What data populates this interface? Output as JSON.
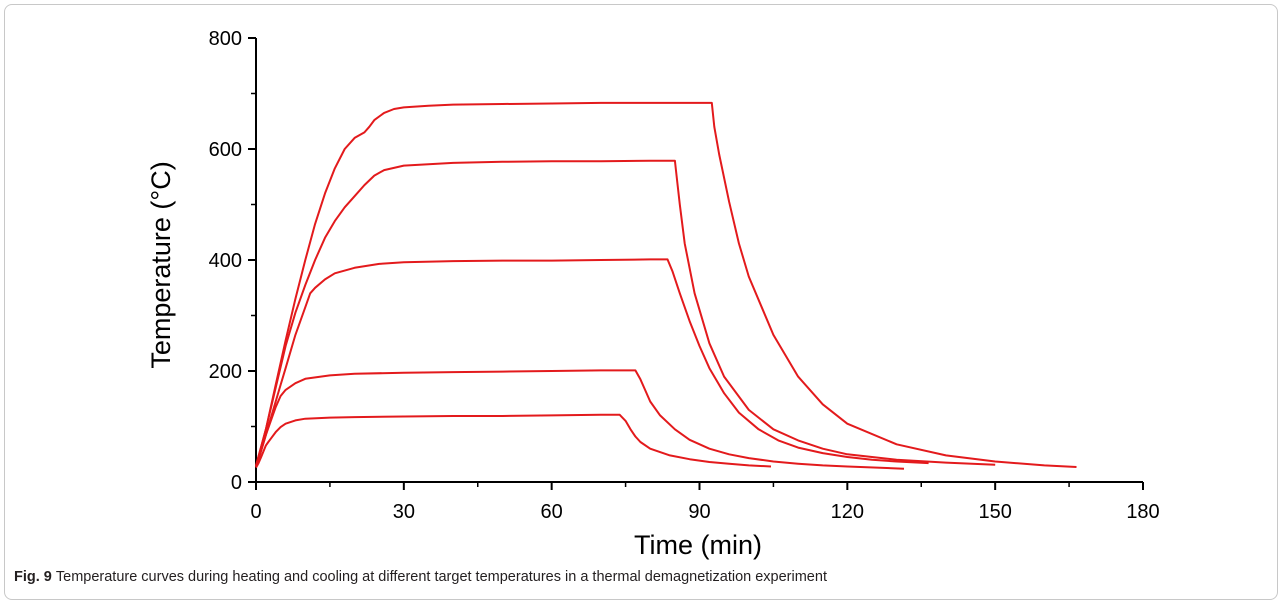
{
  "chart_data": {
    "type": "line",
    "title": "",
    "xlabel": "Time (min)",
    "ylabel": "Temperature (°C)",
    "xlim": [
      0,
      180
    ],
    "ylim": [
      0,
      800
    ],
    "xticks": [
      0,
      30,
      60,
      90,
      120,
      150,
      180
    ],
    "yticks": [
      0,
      200,
      400,
      600,
      800
    ],
    "grid": false,
    "line_color": "#e31a1c",
    "series": [
      {
        "x": [
          0,
          0.5,
          1,
          1.5,
          2,
          2.5,
          3,
          4,
          5,
          6,
          8,
          10,
          15,
          20,
          30,
          40,
          50,
          60,
          70,
          73.8,
          75,
          76,
          77,
          78,
          80,
          84,
          88,
          92,
          96,
          100,
          104.5
        ],
        "y": [
          26,
          34,
          44,
          55,
          66,
          72,
          78,
          90,
          99,
          105,
          111,
          114,
          116,
          117,
          118,
          119,
          119,
          120,
          121,
          121,
          110,
          95,
          82,
          72,
          60,
          48,
          41,
          36,
          33,
          30,
          28
        ]
      },
      {
        "x": [
          0,
          0.5,
          1,
          1.5,
          2,
          3,
          4,
          5,
          6,
          8,
          10,
          15,
          20,
          30,
          40,
          50,
          60,
          70,
          77,
          78,
          79,
          80,
          82,
          85,
          88,
          92,
          96,
          100,
          105,
          110,
          115,
          120,
          126,
          131.5
        ],
        "y": [
          28,
          40,
          55,
          70,
          85,
          110,
          135,
          155,
          166,
          178,
          186,
          192,
          195,
          197,
          198,
          199,
          200,
          201,
          201,
          185,
          165,
          145,
          120,
          95,
          76,
          60,
          50,
          43,
          37,
          33,
          30,
          28,
          26,
          24
        ]
      },
      {
        "x": [
          0,
          1,
          2,
          3,
          4,
          5,
          6,
          8,
          10,
          11,
          12,
          14,
          16,
          20,
          25,
          30,
          40,
          50,
          60,
          70,
          80,
          83.5,
          84.5,
          86,
          88,
          90,
          92,
          95,
          98,
          102,
          106,
          110,
          115,
          120,
          125,
          130,
          136.5
        ],
        "y": [
          28,
          55,
          85,
          115,
          145,
          175,
          205,
          265,
          315,
          340,
          350,
          365,
          376,
          386,
          393,
          396,
          398,
          399,
          399,
          400,
          401,
          401,
          380,
          340,
          290,
          245,
          205,
          160,
          125,
          95,
          75,
          62,
          52,
          45,
          40,
          37,
          34
        ]
      },
      {
        "x": [
          0,
          2,
          4,
          6,
          8,
          10,
          12,
          14,
          16,
          18,
          20,
          22,
          24,
          26,
          30,
          40,
          50,
          60,
          70,
          80,
          85,
          85.5,
          86,
          87,
          89,
          92,
          95,
          100,
          105,
          110,
          115,
          120,
          125,
          130,
          140,
          150
        ],
        "y": [
          28,
          95,
          170,
          245,
          305,
          355,
          400,
          440,
          470,
          495,
          515,
          535,
          552,
          562,
          570,
          575,
          577,
          578,
          578,
          579,
          579,
          540,
          500,
          430,
          340,
          250,
          190,
          130,
          95,
          75,
          60,
          50,
          45,
          40,
          35,
          31
        ]
      },
      {
        "x": [
          0,
          2,
          4,
          6,
          8,
          10,
          12,
          14,
          16,
          18,
          20,
          21,
          22,
          23,
          24,
          26,
          28,
          30,
          35,
          40,
          50,
          60,
          70,
          80,
          90,
          92.5,
          93,
          94,
          96,
          98,
          100,
          105,
          110,
          115,
          120,
          130,
          140,
          150,
          160,
          166.5
        ],
        "y": [
          30,
          95,
          175,
          255,
          330,
          400,
          465,
          520,
          565,
          600,
          620,
          625,
          630,
          640,
          652,
          665,
          672,
          675,
          678,
          680,
          681,
          682,
          683,
          683,
          683,
          683,
          640,
          590,
          505,
          430,
          370,
          265,
          190,
          140,
          105,
          68,
          48,
          37,
          30,
          27
        ]
      }
    ]
  },
  "caption": {
    "label": "Fig. 9",
    "text": "Temperature curves during heating and cooling at different target temperatures in a thermal demagnetization experiment"
  }
}
